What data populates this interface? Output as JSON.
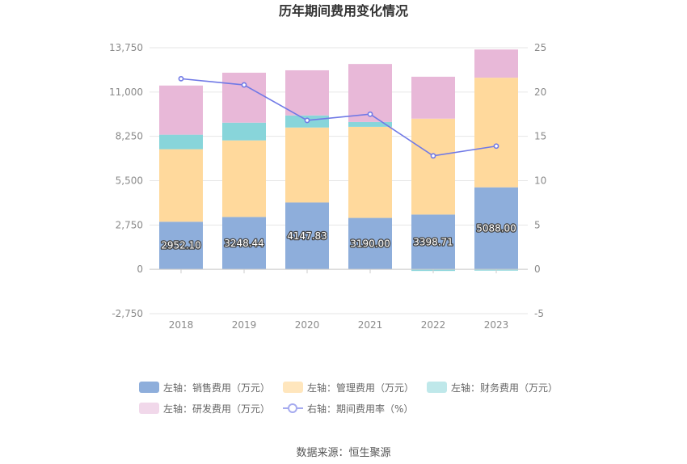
{
  "chart_data": {
    "type": "bar",
    "title": "历年期间费用变化情况",
    "categories": [
      "2018",
      "2019",
      "2020",
      "2021",
      "2022",
      "2023"
    ],
    "left_axis": {
      "ylim": [
        -2750,
        13750
      ],
      "ticks": [
        "-2,750",
        "0",
        "2,750",
        "5,500",
        "8,250",
        "11,000",
        "13,750"
      ],
      "tick_values": [
        -2750,
        0,
        2750,
        5500,
        8250,
        11000,
        13750
      ]
    },
    "right_axis": {
      "ylim": [
        -5,
        25
      ],
      "ticks": [
        "-5",
        "0",
        "5",
        "10",
        "15",
        "20",
        "25"
      ],
      "tick_values": [
        -5,
        0,
        5,
        10,
        15,
        20,
        25
      ]
    },
    "series": [
      {
        "name": "左轴：销售费用（万元）",
        "kind": "bar",
        "axis": "left",
        "color": "#8eaedb",
        "values": [
          2952.1,
          3248.44,
          4147.83,
          3190.0,
          3398.71,
          5088.0
        ],
        "labels": [
          "2952.10",
          "3248.44",
          "4147.83",
          "3190.00",
          "3398.71",
          "5088.00"
        ]
      },
      {
        "name": "左轴：管理费用（万元）",
        "kind": "bar",
        "axis": "left",
        "color": "#ffd99c",
        "values": [
          4500,
          4750,
          4650,
          5650,
          5950,
          6800
        ]
      },
      {
        "name": "左轴：财务费用（万元）",
        "kind": "bar",
        "axis": "left",
        "color": "#88d5da",
        "values": [
          900,
          1100,
          750,
          300,
          -100,
          -80
        ]
      },
      {
        "name": "左轴：研发费用（万元）",
        "kind": "bar",
        "axis": "left",
        "color": "#e8b8d8",
        "values": [
          3050,
          3100,
          2800,
          3600,
          2600,
          1750
        ]
      },
      {
        "name": "右轴：期间费用率（%）",
        "kind": "line",
        "axis": "right",
        "color": "#7079e6",
        "values": [
          21.5,
          20.8,
          16.8,
          17.5,
          12.8,
          13.9
        ]
      }
    ],
    "grid": true,
    "legend_position": "bottom"
  },
  "source_text": "数据来源：恒生聚源"
}
